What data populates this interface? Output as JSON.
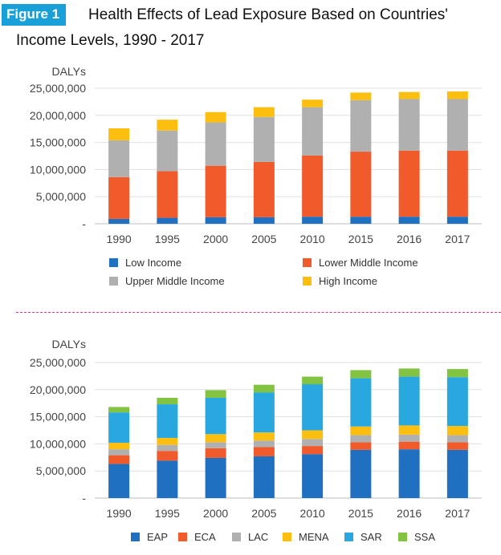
{
  "figure": {
    "badge": "Figure 1",
    "title_line1": "Health Effects of Lead Exposure Based on Countries'",
    "title_line2": "Income Levels, 1990 - 2017"
  },
  "chart_data": [
    {
      "type": "bar",
      "stacked": true,
      "ylabel": "DALYs",
      "ylim": [
        0,
        25000000
      ],
      "yticks": [
        0,
        5000000,
        10000000,
        15000000,
        20000000,
        25000000
      ],
      "ytick_labels": [
        "-",
        "5,000,000",
        "10,000,000",
        "15,000,000",
        "20,000,000",
        "25,000,000"
      ],
      "categories": [
        "1990",
        "1995",
        "2000",
        "2005",
        "2010",
        "2015",
        "2016",
        "2017"
      ],
      "legend_position": "bottom",
      "series": [
        {
          "name": "Low Income",
          "color": "#1f70c1",
          "values": [
            900000,
            1100000,
            1200000,
            1200000,
            1300000,
            1300000,
            1300000,
            1300000
          ]
        },
        {
          "name": "Lower Middle Income",
          "color": "#f15a2b",
          "values": [
            7700000,
            8600000,
            9500000,
            10200000,
            11300000,
            12000000,
            12200000,
            12200000
          ]
        },
        {
          "name": "Upper Middle Income",
          "color": "#b0b0b0",
          "values": [
            6800000,
            7500000,
            8000000,
            8300000,
            8900000,
            9500000,
            9500000,
            9500000
          ]
        },
        {
          "name": "High Income",
          "color": "#fdbf0f",
          "values": [
            2200000,
            2000000,
            1900000,
            1800000,
            1400000,
            1400000,
            1300000,
            1400000
          ]
        }
      ]
    },
    {
      "type": "bar",
      "stacked": true,
      "ylabel": "DALYs",
      "ylim": [
        0,
        25000000
      ],
      "yticks": [
        0,
        5000000,
        10000000,
        15000000,
        20000000,
        25000000
      ],
      "ytick_labels": [
        "-",
        "5,000,000",
        "10,000,000",
        "15,000,000",
        "20,000,000",
        "25,000,000"
      ],
      "categories": [
        "1990",
        "1995",
        "2000",
        "2005",
        "2010",
        "2015",
        "2016",
        "2017"
      ],
      "legend_position": "bottom",
      "series": [
        {
          "name": "EAP",
          "color": "#1f70c1",
          "values": [
            6300000,
            6900000,
            7400000,
            7700000,
            8100000,
            8900000,
            9000000,
            8900000
          ]
        },
        {
          "name": "ECA",
          "color": "#f15a2b",
          "values": [
            1600000,
            1800000,
            1800000,
            1700000,
            1500000,
            1400000,
            1400000,
            1400000
          ]
        },
        {
          "name": "LAC",
          "color": "#b0b0b0",
          "values": [
            1100000,
            1100000,
            1100000,
            1200000,
            1300000,
            1300000,
            1300000,
            1300000
          ]
        },
        {
          "name": "MENA",
          "color": "#fdbf0f",
          "values": [
            1200000,
            1300000,
            1500000,
            1500000,
            1600000,
            1600000,
            1700000,
            1700000
          ]
        },
        {
          "name": "SAR",
          "color": "#29a8e0",
          "values": [
            5600000,
            6200000,
            6700000,
            7400000,
            8500000,
            8900000,
            9000000,
            9000000
          ]
        },
        {
          "name": "SSA",
          "color": "#82c341",
          "values": [
            1000000,
            1200000,
            1400000,
            1400000,
            1400000,
            1500000,
            1500000,
            1500000
          ]
        }
      ]
    }
  ]
}
